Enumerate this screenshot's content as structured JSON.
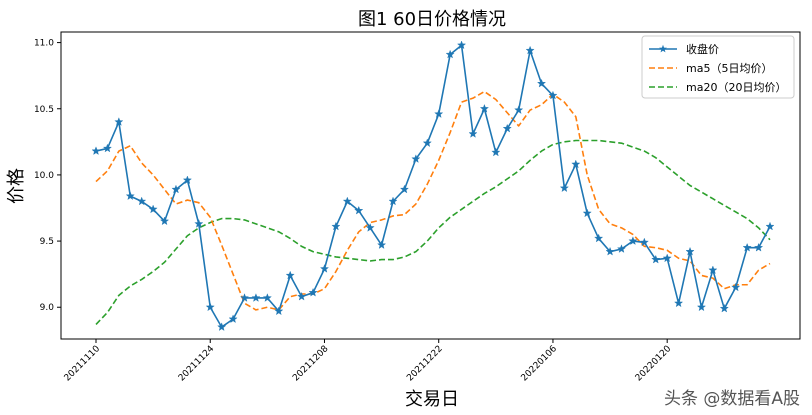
{
  "chart_data": {
    "type": "line",
    "title": "图1  60日价格情况",
    "xlabel": "交易日",
    "ylabel": "价格",
    "ylim": [
      8.76,
      11.08
    ],
    "yticks": [
      9.0,
      9.5,
      10.0,
      10.5,
      11.0
    ],
    "xticks": [
      {
        "index": 0,
        "label": "20211110"
      },
      {
        "index": 10,
        "label": "20211124"
      },
      {
        "index": 20,
        "label": "20211208"
      },
      {
        "index": 30,
        "label": "20211222"
      },
      {
        "index": 40,
        "label": "20220106"
      },
      {
        "index": 50,
        "label": "20220120"
      }
    ],
    "x_count": 60,
    "legend_position": "top-right",
    "grid": false,
    "series": [
      {
        "name": "收盘价",
        "color": "#1f77b4",
        "style": "solid-star",
        "values": [
          10.18,
          10.2,
          10.4,
          9.84,
          9.8,
          9.74,
          9.65,
          9.89,
          9.96,
          9.63,
          9.0,
          8.85,
          8.91,
          9.07,
          9.07,
          9.07,
          8.97,
          9.24,
          9.08,
          9.11,
          9.29,
          9.61,
          9.8,
          9.73,
          9.6,
          9.47,
          9.8,
          9.89,
          10.12,
          10.24,
          10.46,
          10.91,
          10.98,
          10.31,
          10.5,
          10.17,
          10.35,
          10.49,
          10.94,
          10.69,
          10.6,
          9.9,
          10.08,
          9.71,
          9.52,
          9.42,
          9.44,
          9.5,
          9.49,
          9.36,
          9.37,
          9.03,
          9.42,
          9.0,
          9.28,
          8.99,
          9.15,
          9.45,
          9.45,
          9.61
        ]
      },
      {
        "name": "ma5（5日均价）",
        "color": "#ff7f0e",
        "style": "dashed",
        "values": [
          9.95,
          10.03,
          10.18,
          10.22,
          10.09,
          10.0,
          9.89,
          9.78,
          9.81,
          9.79,
          9.68,
          9.47,
          9.25,
          9.03,
          8.98,
          9.0,
          8.98,
          9.08,
          9.1,
          9.1,
          9.14,
          9.27,
          9.43,
          9.57,
          9.64,
          9.66,
          9.69,
          9.7,
          9.78,
          9.93,
          10.11,
          10.32,
          10.55,
          10.58,
          10.63,
          10.57,
          10.47,
          10.37,
          10.49,
          10.53,
          10.61,
          10.55,
          10.44,
          10.0,
          9.74,
          9.63,
          9.6,
          9.55,
          9.46,
          9.45,
          9.43,
          9.37,
          9.35,
          9.24,
          9.22,
          9.14,
          9.17,
          9.17,
          9.28,
          9.33
        ]
      },
      {
        "name": "ma20（20日均价）",
        "color": "#2ca02c",
        "style": "dashed",
        "values": [
          8.87,
          8.96,
          9.09,
          9.16,
          9.21,
          9.27,
          9.34,
          9.44,
          9.54,
          9.6,
          9.64,
          9.67,
          9.67,
          9.66,
          9.63,
          9.6,
          9.57,
          9.52,
          9.46,
          9.42,
          9.4,
          9.38,
          9.37,
          9.36,
          9.35,
          9.36,
          9.36,
          9.38,
          9.42,
          9.5,
          9.6,
          9.68,
          9.74,
          9.8,
          9.86,
          9.91,
          9.97,
          10.03,
          10.11,
          10.18,
          10.23,
          10.25,
          10.26,
          10.26,
          10.26,
          10.25,
          10.24,
          10.21,
          10.18,
          10.13,
          10.06,
          9.99,
          9.92,
          9.87,
          9.82,
          9.77,
          9.72,
          9.67,
          9.6,
          9.51
        ]
      }
    ]
  },
  "watermark": "头条 @数据看A股"
}
